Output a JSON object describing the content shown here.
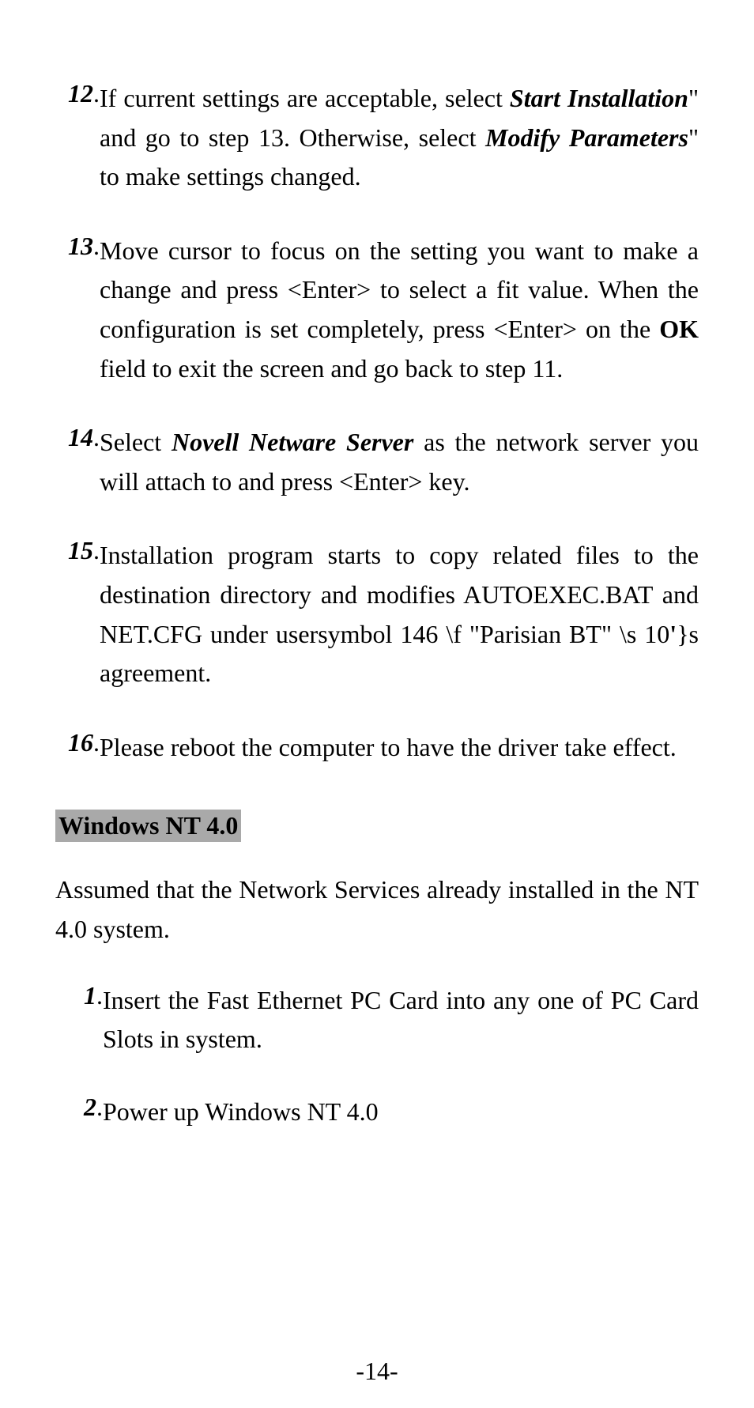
{
  "items": [
    {
      "num": "12",
      "segments": [
        {
          "text": "If current settings are acceptable, select ",
          "style": ""
        },
        {
          "text": "Start Installation",
          "style": "bold-italic"
        },
        {
          "text": "\" and go to step 13. Otherwise, select ",
          "style": ""
        },
        {
          "text": "Modify Parameters",
          "style": "bold-italic"
        },
        {
          "text": "\" to make settings changed.",
          "style": ""
        }
      ]
    },
    {
      "num": "13",
      "segments": [
        {
          "text": "Move cursor to focus on the setting you want to make a change and press <Enter> to select a fit value. When the configuration is set completely, press <Enter> on the ",
          "style": ""
        },
        {
          "text": "OK",
          "style": "bold"
        },
        {
          "text": " field to exit the screen and go back to step 11.",
          "style": ""
        }
      ]
    },
    {
      "num": "14",
      "segments": [
        {
          "text": "Select ",
          "style": ""
        },
        {
          "text": "Novell Netware Server",
          "style": "bold-italic"
        },
        {
          "text": " as the network server you will attach to and press <Enter> key.",
          "style": ""
        }
      ]
    },
    {
      "num": "15",
      "segments": [
        {
          "text": "Installation program starts to copy related files to the destination directory and modifies AUTOEXEC.BAT and NET.CFG under usersymbol 146 \\f \"Parisian BT\" \\s 10",
          "style": ""
        },
        {
          "text": "'",
          "style": "bold"
        },
        {
          "text": "}s agreement.",
          "style": ""
        }
      ]
    },
    {
      "num": "16",
      "segments": [
        {
          "text": "Please reboot the computer to have the driver take effect.",
          "style": ""
        }
      ]
    }
  ],
  "heading": "Windows NT 4.0",
  "paragraph": "Assumed that the Network Services already installed in the NT 4.0 system.",
  "subitems": [
    {
      "num": "1",
      "segments": [
        {
          "text": "Insert the Fast Ethernet PC Card into any one of PC Card Slots in system.",
          "style": ""
        }
      ]
    },
    {
      "num": "2",
      "segments": [
        {
          "text": "Power up Windows NT 4.0",
          "style": ""
        }
      ]
    }
  ],
  "pageNumber": "-14-"
}
